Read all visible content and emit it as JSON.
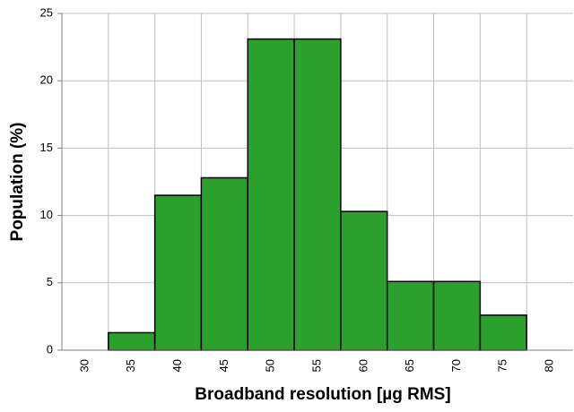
{
  "chart_data": {
    "type": "histogram",
    "xlabel": "Broadband resolution [µg RMS]",
    "ylabel": "Population (%)",
    "bins": [
      32.5,
      37.5,
      42.5,
      47.5,
      52.5,
      57.5,
      62.5,
      67.5,
      72.5,
      77.5
    ],
    "values": [
      1.3,
      11.5,
      12.8,
      23.1,
      23.1,
      10.3,
      5.1,
      5.1,
      2.6
    ],
    "color": "#2ca02c",
    "xlim": [
      27.5,
      82.5
    ],
    "xticks": [
      30,
      35,
      40,
      45,
      50,
      55,
      60,
      65,
      70,
      75,
      80
    ],
    "ylim": [
      0,
      25
    ],
    "yticks": [
      0,
      5,
      10,
      15,
      20,
      25
    ],
    "grid": true
  }
}
